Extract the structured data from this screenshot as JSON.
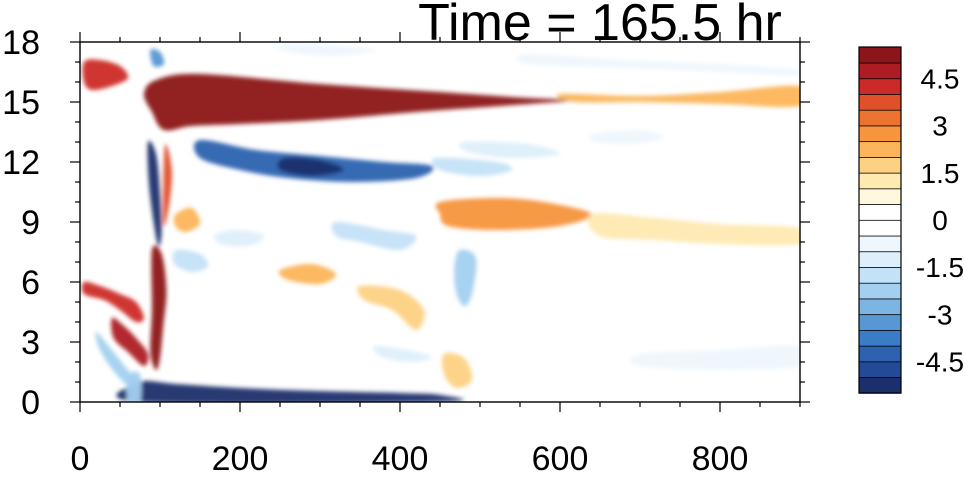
{
  "chart_data": {
    "type": "heatmap",
    "title": "Time = 165.5 hr",
    "xlabel": "",
    "ylabel": "",
    "x_ticks": [
      0,
      200,
      400,
      600,
      800
    ],
    "y_ticks": [
      0,
      3,
      6,
      9,
      12,
      15,
      18
    ],
    "xlim": [
      0,
      900
    ],
    "ylim": [
      0,
      18
    ],
    "colorbar": {
      "placement": "right",
      "levels": [
        -5.5,
        -5,
        -4.5,
        -4,
        -3.5,
        -3,
        -2.5,
        -2,
        -1.5,
        -1,
        -0.5,
        0,
        0.5,
        1,
        1.5,
        2,
        2.5,
        3,
        3.5,
        4,
        4.5,
        5,
        5.5
      ],
      "colors": [
        "#1a2f6b",
        "#224a96",
        "#2c62b0",
        "#3a7cc5",
        "#5697d4",
        "#7cb4e3",
        "#a3d0f0",
        "#c4e2f7",
        "#ddeffb",
        "#eef7fd",
        "#ffffff",
        "#ffffff",
        "#fff8dc",
        "#fee9b0",
        "#fdd184",
        "#fcb55a",
        "#f7953c",
        "#ed7430",
        "#e0502a",
        "#cc2a26",
        "#ad1c22",
        "#8c1519"
      ],
      "tick_labels": [
        "4.5",
        "3",
        "1.5",
        "0",
        "-1.5",
        "-3",
        "-4.5"
      ],
      "tick_values": [
        4.5,
        3,
        1.5,
        0,
        -1.5,
        -3,
        -4.5
      ]
    },
    "features": [
      {
        "value": 5.5,
        "points": [
          [
            80,
            15.4
          ],
          [
            95,
            16.1
          ],
          [
            150,
            16.4
          ],
          [
            300,
            15.9
          ],
          [
            450,
            15.5
          ],
          [
            560,
            15.2
          ],
          [
            620,
            15.1
          ],
          [
            560,
            14.9
          ],
          [
            420,
            14.5
          ],
          [
            300,
            14.1
          ],
          [
            200,
            13.9
          ],
          [
            140,
            13.8
          ],
          [
            105,
            13.6
          ],
          [
            90,
            14.5
          ]
        ]
      },
      {
        "value": 2.0,
        "points": [
          [
            600,
            15.4
          ],
          [
            700,
            15.3
          ],
          [
            800,
            15.5
          ],
          [
            900,
            15.8
          ],
          [
            900,
            14.8
          ],
          [
            800,
            14.9
          ],
          [
            700,
            15.0
          ],
          [
            620,
            15.0
          ]
        ]
      },
      {
        "value": -4.5,
        "points": [
          [
            150,
            13.1
          ],
          [
            220,
            12.6
          ],
          [
            300,
            12.3
          ],
          [
            380,
            12.0
          ],
          [
            440,
            11.8
          ],
          [
            420,
            11.2
          ],
          [
            340,
            11.0
          ],
          [
            260,
            11.2
          ],
          [
            200,
            11.6
          ],
          [
            150,
            12.2
          ]
        ]
      },
      {
        "value": -5.5,
        "points": [
          [
            255,
            12.2
          ],
          [
            300,
            12.1
          ],
          [
            330,
            11.6
          ],
          [
            290,
            11.3
          ],
          [
            250,
            11.6
          ]
        ]
      },
      {
        "value": -2.0,
        "points": [
          [
            445,
            12.2
          ],
          [
            520,
            12.0
          ],
          [
            540,
            11.6
          ],
          [
            500,
            11.3
          ],
          [
            450,
            11.6
          ]
        ]
      },
      {
        "value": -5.5,
        "points": [
          [
            85,
            13.0
          ],
          [
            95,
            12.4
          ],
          [
            100,
            10.5
          ],
          [
            102,
            8.5
          ],
          [
            98,
            7.8
          ],
          [
            92,
            9.0
          ],
          [
            86,
            11.0
          ]
        ]
      },
      {
        "value": 5.0,
        "points": [
          [
            90,
            7.6
          ],
          [
            102,
            7.4
          ],
          [
            108,
            5.6
          ],
          [
            104,
            3.8
          ],
          [
            100,
            2.2
          ],
          [
            95,
            1.6
          ],
          [
            88,
            2.5
          ],
          [
            90,
            4.6
          ]
        ]
      },
      {
        "value": 3.5,
        "points": [
          [
            106,
            12.8
          ],
          [
            115,
            11.5
          ],
          [
            110,
            9.5
          ],
          [
            104,
            9.0
          ]
        ]
      },
      {
        "value": 4.0,
        "points": [
          [
            5,
            17.0
          ],
          [
            25,
            17.1
          ],
          [
            50,
            16.8
          ],
          [
            60,
            16.2
          ],
          [
            40,
            15.8
          ],
          [
            15,
            15.6
          ],
          [
            5,
            16.0
          ]
        ]
      },
      {
        "value": -3.5,
        "points": [
          [
            88,
            17.6
          ],
          [
            100,
            17.5
          ],
          [
            105,
            16.9
          ],
          [
            92,
            16.8
          ]
        ]
      },
      {
        "value": 4.0,
        "points": [
          [
            5,
            6.0
          ],
          [
            25,
            5.8
          ],
          [
            50,
            5.4
          ],
          [
            70,
            5.0
          ],
          [
            80,
            4.2
          ],
          [
            70,
            4.0
          ],
          [
            50,
            4.6
          ],
          [
            30,
            5.1
          ],
          [
            5,
            5.4
          ]
        ]
      },
      {
        "value": 4.5,
        "points": [
          [
            40,
            4.2
          ],
          [
            55,
            3.8
          ],
          [
            70,
            3.2
          ],
          [
            85,
            2.4
          ],
          [
            80,
            1.8
          ],
          [
            60,
            2.5
          ],
          [
            42,
            3.2
          ]
        ]
      },
      {
        "value": -2.5,
        "points": [
          [
            20,
            3.5
          ],
          [
            40,
            2.6
          ],
          [
            60,
            1.6
          ],
          [
            80,
            0.8
          ],
          [
            70,
            0.5
          ],
          [
            45,
            1.4
          ],
          [
            25,
            2.6
          ]
        ]
      },
      {
        "value": -5.5,
        "points": [
          [
            75,
            1.0
          ],
          [
            120,
            0.9
          ],
          [
            200,
            0.7
          ],
          [
            300,
            0.55
          ],
          [
            400,
            0.45
          ],
          [
            450,
            0.35
          ],
          [
            450,
            0.0
          ],
          [
            75,
            0.0
          ]
        ]
      },
      {
        "value": -2.5,
        "points": [
          [
            60,
            1.3
          ],
          [
            75,
            1.4
          ],
          [
            75,
            0.0
          ],
          [
            60,
            0.0
          ]
        ]
      },
      {
        "value": 2.5,
        "points": [
          [
            450,
            10.0
          ],
          [
            520,
            10.2
          ],
          [
            580,
            10.0
          ],
          [
            640,
            9.4
          ],
          [
            600,
            8.8
          ],
          [
            520,
            8.6
          ],
          [
            460,
            8.8
          ],
          [
            450,
            9.4
          ]
        ]
      },
      {
        "value": 1.0,
        "points": [
          [
            640,
            9.4
          ],
          [
            720,
            9.2
          ],
          [
            800,
            8.9
          ],
          [
            900,
            8.7
          ],
          [
            900,
            7.9
          ],
          [
            800,
            7.9
          ],
          [
            720,
            8.1
          ],
          [
            650,
            8.3
          ]
        ]
      },
      {
        "value": -2.0,
        "points": [
          [
            320,
            9.0
          ],
          [
            380,
            8.6
          ],
          [
            420,
            8.3
          ],
          [
            400,
            7.6
          ],
          [
            350,
            8.0
          ],
          [
            320,
            8.3
          ]
        ]
      },
      {
        "value": -2.5,
        "points": [
          [
            475,
            7.6
          ],
          [
            495,
            7.2
          ],
          [
            490,
            5.4
          ],
          [
            480,
            4.8
          ],
          [
            470,
            5.5
          ],
          [
            468,
            6.8
          ]
        ]
      },
      {
        "value": -1.5,
        "points": [
          [
            170,
            8.4
          ],
          [
            200,
            8.6
          ],
          [
            230,
            8.3
          ],
          [
            210,
            7.8
          ],
          [
            175,
            7.9
          ]
        ]
      },
      {
        "value": -1.0,
        "points": [
          [
            560,
            17.4
          ],
          [
            680,
            17.1
          ],
          [
            800,
            16.9
          ],
          [
            900,
            16.6
          ],
          [
            900,
            16.3
          ],
          [
            800,
            16.5
          ],
          [
            680,
            16.7
          ],
          [
            560,
            16.9
          ]
        ]
      },
      {
        "value": -1.0,
        "points": [
          [
            640,
            13.4
          ],
          [
            700,
            13.6
          ],
          [
            730,
            13.2
          ],
          [
            690,
            12.9
          ],
          [
            645,
            13.0
          ]
        ]
      },
      {
        "value": 2.0,
        "points": [
          [
            250,
            6.6
          ],
          [
            290,
            6.9
          ],
          [
            320,
            6.4
          ],
          [
            300,
            5.9
          ],
          [
            260,
            6.1
          ]
        ]
      },
      {
        "value": 1.5,
        "points": [
          [
            350,
            5.8
          ],
          [
            400,
            5.6
          ],
          [
            430,
            4.6
          ],
          [
            420,
            3.6
          ],
          [
            390,
            4.6
          ],
          [
            355,
            5.1
          ]
        ]
      },
      {
        "value": 1.5,
        "points": [
          [
            455,
            2.4
          ],
          [
            480,
            2.2
          ],
          [
            490,
            1.1
          ],
          [
            470,
            0.7
          ],
          [
            455,
            1.4
          ]
        ]
      },
      {
        "value": -1.5,
        "points": [
          [
            370,
            2.8
          ],
          [
            420,
            2.5
          ],
          [
            440,
            2.2
          ],
          [
            410,
            2.0
          ],
          [
            375,
            2.3
          ]
        ]
      },
      {
        "value": -1.0,
        "points": [
          [
            700,
            2.4
          ],
          [
            800,
            2.6
          ],
          [
            900,
            2.8
          ],
          [
            900,
            1.8
          ],
          [
            800,
            1.6
          ],
          [
            700,
            1.8
          ]
        ]
      },
      {
        "value": -2.0,
        "points": [
          [
            120,
            7.6
          ],
          [
            150,
            7.4
          ],
          [
            160,
            6.8
          ],
          [
            140,
            6.5
          ],
          [
            118,
            6.9
          ]
        ]
      },
      {
        "value": 2.0,
        "points": [
          [
            120,
            9.4
          ],
          [
            140,
            9.7
          ],
          [
            150,
            8.9
          ],
          [
            130,
            8.5
          ],
          [
            118,
            8.9
          ]
        ]
      },
      {
        "value": -1.0,
        "points": [
          [
            250,
            17.9
          ],
          [
            330,
            17.8
          ],
          [
            370,
            17.6
          ],
          [
            320,
            17.3
          ],
          [
            260,
            17.5
          ]
        ]
      },
      {
        "value": -1.5,
        "points": [
          [
            480,
            13.0
          ],
          [
            560,
            12.9
          ],
          [
            600,
            12.4
          ],
          [
            540,
            12.2
          ],
          [
            485,
            12.5
          ]
        ]
      }
    ]
  }
}
